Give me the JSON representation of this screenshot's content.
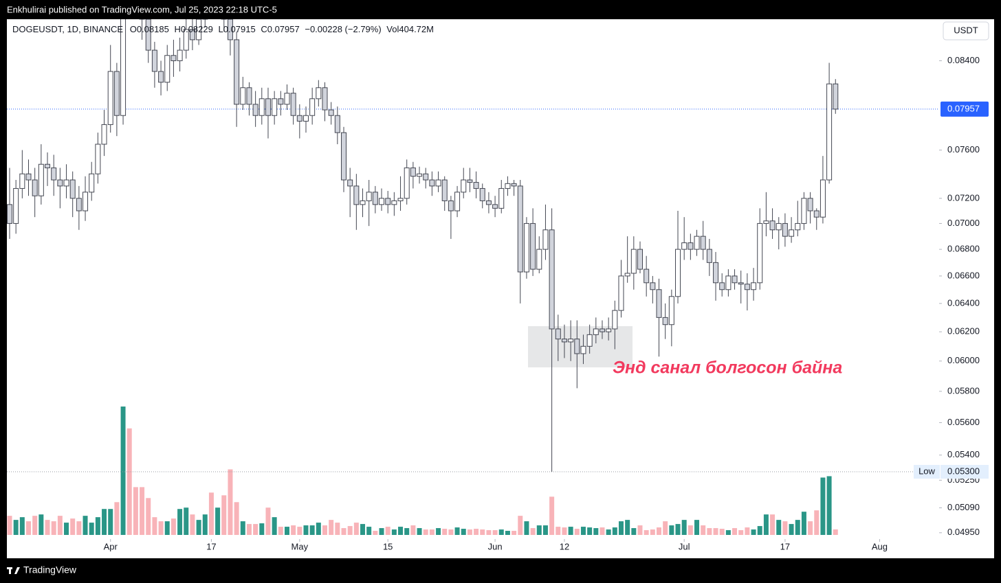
{
  "header": {
    "byline": "Enkhulirai published on TradingView.com, Jul 25, 2023 22:18 UTC-5",
    "symbol": "DOGEUSDT, 1D, BINANCE",
    "legend": [
      {
        "key": "O",
        "value": "0.08185"
      },
      {
        "key": "H",
        "value": "0.08229"
      },
      {
        "key": "L",
        "value": "0.07915"
      },
      {
        "key": "C",
        "value": "0.07957"
      }
    ],
    "change": "−0.00228 (−2.79%)",
    "volume_key": "Vol",
    "volume": "404.72M",
    "currency": "USDT"
  },
  "chart_data": {
    "type": "candlestick",
    "x": [
      "Mar 16",
      "Mar 17",
      "Mar 18",
      "Mar 19",
      "Mar 20",
      "Mar 21",
      "Mar 22",
      "Mar 23",
      "Mar 24",
      "Mar 25",
      "Mar 26",
      "Mar 27",
      "Mar 28",
      "Mar 29",
      "Mar 30",
      "Mar 31",
      "Apr 1",
      "Apr 2",
      "Apr 3",
      "Apr 4",
      "Apr 5",
      "Apr 6",
      "Apr 7",
      "Apr 8",
      "Apr 9",
      "Apr 10",
      "Apr 11",
      "Apr 12",
      "Apr 13",
      "Apr 14",
      "Apr 15",
      "Apr 16",
      "Apr 17",
      "Apr 18",
      "Apr 19",
      "Apr 20",
      "Apr 21",
      "Apr 22",
      "Apr 23",
      "Apr 24",
      "Apr 25",
      "Apr 26",
      "Apr 27",
      "Apr 28",
      "Apr 29",
      "Apr 30",
      "May 1",
      "May 2",
      "May 3",
      "May 4",
      "May 5",
      "May 6",
      "May 7",
      "May 8",
      "May 9",
      "May 10",
      "May 11",
      "May 12",
      "May 13",
      "May 14",
      "May 15",
      "May 16",
      "May 17",
      "May 18",
      "May 19",
      "May 20",
      "May 21",
      "May 22",
      "May 23",
      "May 24",
      "May 25",
      "May 26",
      "May 27",
      "May 28",
      "May 29",
      "May 30",
      "May 31",
      "Jun 1",
      "Jun 2",
      "Jun 3",
      "Jun 4",
      "Jun 5",
      "Jun 6",
      "Jun 7",
      "Jun 8",
      "Jun 9",
      "Jun 10",
      "Jun 11",
      "Jun 12",
      "Jun 13",
      "Jun 14",
      "Jun 15",
      "Jun 16",
      "Jun 17",
      "Jun 18",
      "Jun 19",
      "Jun 20",
      "Jun 21",
      "Jun 22",
      "Jun 23",
      "Jun 24",
      "Jun 25",
      "Jun 26",
      "Jun 27",
      "Jun 28",
      "Jun 29",
      "Jun 30",
      "Jul 1",
      "Jul 2",
      "Jul 3",
      "Jul 4",
      "Jul 5",
      "Jul 6",
      "Jul 7",
      "Jul 8",
      "Jul 9",
      "Jul 10",
      "Jul 11",
      "Jul 12",
      "Jul 13",
      "Jul 14",
      "Jul 15",
      "Jul 16",
      "Jul 17",
      "Jul 18",
      "Jul 19",
      "Jul 20",
      "Jul 21",
      "Jul 22",
      "Jul 23",
      "Jul 24",
      "Jul 25"
    ],
    "open": [
      0.0715,
      0.07,
      0.0728,
      0.074,
      0.0735,
      0.0722,
      0.0748,
      0.0745,
      0.0735,
      0.073,
      0.0735,
      0.072,
      0.071,
      0.0725,
      0.074,
      0.0765,
      0.0782,
      0.083,
      0.079,
      0.095,
      0.093,
      0.09,
      0.088,
      0.085,
      0.083,
      0.082,
      0.0845,
      0.084,
      0.085,
      0.087,
      0.086,
      0.088,
      0.092,
      0.09,
      0.092,
      0.088,
      0.086,
      0.08,
      0.0815,
      0.08,
      0.079,
      0.0805,
      0.079,
      0.0805,
      0.08,
      0.081,
      0.079,
      0.0785,
      0.079,
      0.0805,
      0.0815,
      0.0795,
      0.079,
      0.0775,
      0.0735,
      0.073,
      0.0715,
      0.0718,
      0.0725,
      0.0715,
      0.072,
      0.0715,
      0.0718,
      0.072,
      0.0745,
      0.0738,
      0.074,
      0.0735,
      0.073,
      0.0735,
      0.0718,
      0.071,
      0.0725,
      0.0735,
      0.0733,
      0.0728,
      0.0718,
      0.0715,
      0.0712,
      0.0728,
      0.0732,
      0.073,
      0.0663,
      0.07,
      0.0665,
      0.068,
      0.0695,
      0.0622,
      0.0615,
      0.0613,
      0.0615,
      0.0605,
      0.061,
      0.0618,
      0.0622,
      0.062,
      0.0622,
      0.0635,
      0.066,
      0.0662,
      0.068,
      0.0665,
      0.0655,
      0.065,
      0.063,
      0.0625,
      0.0645,
      0.068,
      0.0685,
      0.068,
      0.069,
      0.068,
      0.067,
      0.0655,
      0.065,
      0.066,
      0.0655,
      0.0654,
      0.065,
      0.0655,
      0.07,
      0.0702,
      0.0695,
      0.07,
      0.069,
      0.0695,
      0.07,
      0.072,
      0.071,
      0.0705,
      0.0735,
      0.08185
    ],
    "high": [
      0.0745,
      0.0735,
      0.076,
      0.0752,
      0.0745,
      0.0765,
      0.0758,
      0.0756,
      0.0745,
      0.0748,
      0.0742,
      0.073,
      0.0738,
      0.075,
      0.0775,
      0.0795,
      0.0855,
      0.0838,
      0.1,
      0.098,
      0.0945,
      0.091,
      0.089,
      0.0858,
      0.084,
      0.0855,
      0.086,
      0.0862,
      0.088,
      0.0885,
      0.089,
      0.0935,
      0.093,
      0.0935,
      0.0925,
      0.089,
      0.0868,
      0.0825,
      0.082,
      0.0812,
      0.0815,
      0.0815,
      0.0812,
      0.0812,
      0.0818,
      0.0815,
      0.08,
      0.0798,
      0.0815,
      0.0822,
      0.082,
      0.0802,
      0.0798,
      0.078,
      0.0745,
      0.074,
      0.0728,
      0.0735,
      0.073,
      0.0728,
      0.0726,
      0.0725,
      0.0738,
      0.0752,
      0.075,
      0.0746,
      0.0745,
      0.0742,
      0.0742,
      0.0738,
      0.0722,
      0.073,
      0.0745,
      0.0745,
      0.0742,
      0.0732,
      0.0725,
      0.0722,
      0.0735,
      0.0738,
      0.0735,
      0.0735,
      0.0705,
      0.0712,
      0.069,
      0.0715,
      0.0712,
      0.0632,
      0.0625,
      0.0628,
      0.0628,
      0.0618,
      0.0625,
      0.063,
      0.0628,
      0.063,
      0.0642,
      0.0672,
      0.069,
      0.069,
      0.0686,
      0.0675,
      0.066,
      0.0658,
      0.064,
      0.065,
      0.071,
      0.0705,
      0.0692,
      0.0695,
      0.0702,
      0.0688,
      0.0678,
      0.0662,
      0.0665,
      0.0665,
      0.0664,
      0.0662,
      0.0666,
      0.0712,
      0.0725,
      0.0712,
      0.0705,
      0.0708,
      0.0705,
      0.0718,
      0.0725,
      0.0725,
      0.0712,
      0.0755,
      0.0838,
      0.08229
    ],
    "low": [
      0.0688,
      0.0692,
      0.072,
      0.0722,
      0.0705,
      0.0715,
      0.073,
      0.0722,
      0.0712,
      0.072,
      0.0705,
      0.0695,
      0.0702,
      0.0718,
      0.0732,
      0.0755,
      0.0775,
      0.0772,
      0.0782,
      0.0905,
      0.0885,
      0.086,
      0.0838,
      0.0815,
      0.0808,
      0.0812,
      0.0825,
      0.083,
      0.0842,
      0.085,
      0.0855,
      0.0872,
      0.088,
      0.089,
      0.0868,
      0.0845,
      0.078,
      0.0795,
      0.079,
      0.078,
      0.0782,
      0.077,
      0.0782,
      0.079,
      0.0795,
      0.0782,
      0.077,
      0.0775,
      0.0782,
      0.0798,
      0.0785,
      0.0782,
      0.0765,
      0.0725,
      0.0705,
      0.0695,
      0.0705,
      0.0698,
      0.0708,
      0.071,
      0.0708,
      0.0706,
      0.071,
      0.0715,
      0.0728,
      0.0732,
      0.0728,
      0.0722,
      0.0725,
      0.071,
      0.0688,
      0.0705,
      0.072,
      0.0725,
      0.072,
      0.0712,
      0.0708,
      0.0705,
      0.0708,
      0.0722,
      0.0722,
      0.064,
      0.0658,
      0.066,
      0.0662,
      0.0672,
      0.053,
      0.06,
      0.0602,
      0.06,
      0.0582,
      0.0598,
      0.0605,
      0.0612,
      0.0615,
      0.0614,
      0.0608,
      0.063,
      0.0655,
      0.065,
      0.0662,
      0.0645,
      0.064,
      0.0603,
      0.0615,
      0.061,
      0.064,
      0.0672,
      0.0672,
      0.0675,
      0.0672,
      0.066,
      0.0642,
      0.0645,
      0.0645,
      0.065,
      0.064,
      0.0635,
      0.0642,
      0.065,
      0.069,
      0.0688,
      0.068,
      0.0682,
      0.0685,
      0.069,
      0.0695,
      0.07,
      0.0695,
      0.07,
      0.0732,
      0.07915
    ],
    "close": [
      0.07,
      0.0728,
      0.074,
      0.0735,
      0.0722,
      0.0748,
      0.0745,
      0.0735,
      0.073,
      0.0735,
      0.072,
      0.071,
      0.0725,
      0.074,
      0.0765,
      0.0782,
      0.083,
      0.079,
      0.095,
      0.093,
      0.09,
      0.088,
      0.085,
      0.083,
      0.082,
      0.0845,
      0.084,
      0.085,
      0.087,
      0.086,
      0.088,
      0.092,
      0.09,
      0.092,
      0.088,
      0.086,
      0.08,
      0.0815,
      0.08,
      0.079,
      0.0805,
      0.079,
      0.0805,
      0.08,
      0.081,
      0.079,
      0.0785,
      0.079,
      0.0805,
      0.0815,
      0.0795,
      0.079,
      0.0775,
      0.0735,
      0.073,
      0.0715,
      0.0718,
      0.0725,
      0.0715,
      0.072,
      0.0715,
      0.0718,
      0.072,
      0.0745,
      0.0738,
      0.074,
      0.0735,
      0.073,
      0.0735,
      0.0718,
      0.071,
      0.0725,
      0.0735,
      0.0733,
      0.0728,
      0.0718,
      0.0715,
      0.0712,
      0.0728,
      0.0732,
      0.073,
      0.0663,
      0.07,
      0.0665,
      0.068,
      0.0695,
      0.0622,
      0.0615,
      0.0613,
      0.0615,
      0.0605,
      0.061,
      0.0618,
      0.0622,
      0.062,
      0.0622,
      0.0635,
      0.066,
      0.0662,
      0.068,
      0.0665,
      0.0655,
      0.065,
      0.063,
      0.0625,
      0.0645,
      0.068,
      0.0685,
      0.068,
      0.069,
      0.068,
      0.067,
      0.0655,
      0.065,
      0.066,
      0.0655,
      0.0654,
      0.065,
      0.0655,
      0.07,
      0.0702,
      0.0695,
      0.07,
      0.069,
      0.0695,
      0.07,
      0.072,
      0.071,
      0.0705,
      0.0735,
      0.08185,
      0.07957
    ],
    "volume": [
      1400,
      1100,
      1300,
      1000,
      1400,
      1500,
      1100,
      1000,
      1400,
      900,
      1200,
      1000,
      1400,
      900,
      1300,
      1900,
      1900,
      2400,
      9400,
      7800,
      3500,
      3500,
      2700,
      1300,
      1000,
      1000,
      1200,
      1900,
      2000,
      1500,
      1100,
      1500,
      3100,
      2000,
      2900,
      4800,
      2400,
      1000,
      800,
      800,
      850,
      2000,
      1300,
      600,
      600,
      700,
      600,
      700,
      700,
      900,
      700,
      1100,
      900,
      500,
      650,
      900,
      800,
      600,
      300,
      500,
      600,
      400,
      600,
      500,
      700,
      500,
      400,
      400,
      500,
      450,
      400,
      550,
      450,
      400,
      450,
      400,
      350,
      350,
      400,
      300,
      300,
      1400,
      1000,
      500,
      700,
      700,
      2800,
      600,
      550,
      600,
      450,
      600,
      550,
      500,
      550,
      400,
      550,
      1000,
      1100,
      500,
      700,
      350,
      400,
      550,
      1000,
      700,
      800,
      1100,
      700,
      1100,
      700,
      500,
      500,
      450,
      350,
      500,
      350,
      550,
      400,
      650,
      1500,
      1500,
      1100,
      1000,
      800,
      1100,
      1700,
      1000,
      1800,
      4200,
      4300,
      404.72
    ],
    "ylim": [
      0.049,
      0.088
    ],
    "log_scale": true,
    "grid": false,
    "yticks": [
      {
        "value": 0.084,
        "label": "0.08400"
      },
      {
        "value": 0.076,
        "label": "0.07600"
      },
      {
        "value": 0.072,
        "label": "0.07200"
      },
      {
        "value": 0.07,
        "label": "0.07000"
      },
      {
        "value": 0.068,
        "label": "0.06800"
      },
      {
        "value": 0.066,
        "label": "0.06600"
      },
      {
        "value": 0.064,
        "label": "0.06400"
      },
      {
        "value": 0.062,
        "label": "0.06200"
      },
      {
        "value": 0.06,
        "label": "0.06000"
      },
      {
        "value": 0.058,
        "label": "0.05800"
      },
      {
        "value": 0.056,
        "label": "0.05600"
      },
      {
        "value": 0.054,
        "label": "0.05400"
      },
      {
        "value": 0.0525,
        "label": "0.05250"
      },
      {
        "value": 0.0509,
        "label": "0.05090"
      },
      {
        "value": 0.0495,
        "label": "0.04950"
      }
    ],
    "xticks": [
      {
        "value": "Apr 1",
        "label": "Apr"
      },
      {
        "value": "Apr 17",
        "label": "17"
      },
      {
        "value": "May 1",
        "label": "May"
      },
      {
        "value": "May 15",
        "label": "15"
      },
      {
        "value": "Jun 1",
        "label": "Jun"
      },
      {
        "value": "Jun 12",
        "label": "12"
      },
      {
        "value": "Jul 1",
        "label": "Jul"
      },
      {
        "value": "Jul 17",
        "label": "17"
      },
      {
        "value": "Aug 1",
        "label": "Aug"
      }
    ],
    "up_color": "#ffffff",
    "down_color": "#d1d4dc",
    "wick_color": "#434651",
    "volume_up_color": "#2a9687",
    "volume_down_color": "#f8b3b8",
    "last_price_color": "#2962ff",
    "annotation": "Энд санал болгосон байна",
    "low_marker": {
      "label": "Low",
      "value": 0.053,
      "value_label": "0.05300"
    }
  },
  "footer": {
    "brand": "TradingView"
  }
}
